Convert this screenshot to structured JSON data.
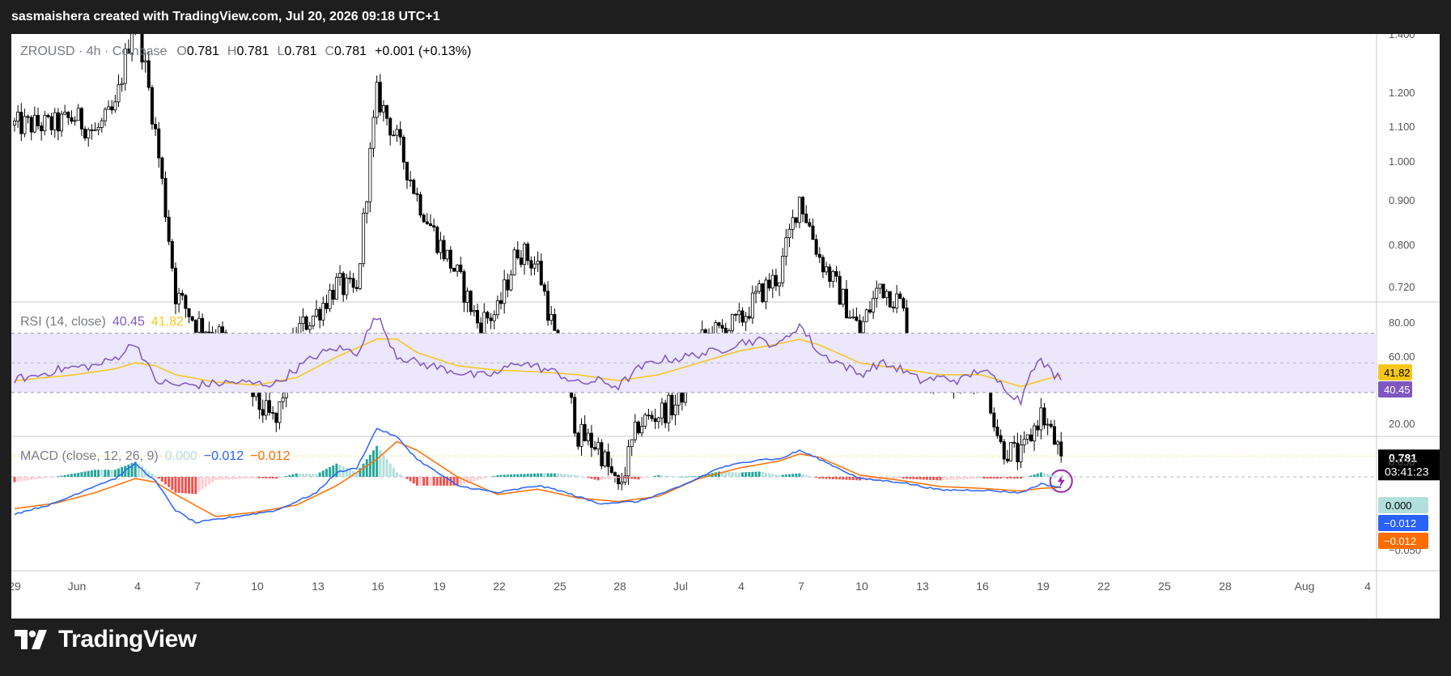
{
  "header": {
    "attribution": "sasmaishera created with TradingView.com, Jul 20, 2026 09:18 UTC+1"
  },
  "brand": {
    "name": "TradingView",
    "logo_icon": "tradingview-logo-icon"
  },
  "colors": {
    "background": "#1e1e1e",
    "pane": "#ffffff",
    "candle": "#000000",
    "rsi_line": "#7e57c2",
    "rsi_ma": "#f7c61b",
    "rsi_band": "#ece7fb",
    "macd_line": "#2962ff",
    "signal_line": "#ff6d00",
    "hist_pos_strong": "#26a69a",
    "hist_pos_weak": "#b2dfdb",
    "hist_neg_strong": "#ef5350",
    "hist_neg_weak": "#ffcdd2"
  },
  "price_pane": {
    "legend": {
      "symbol": "ZROUSD",
      "interval": "4h",
      "exchange": "Coinbase",
      "o_label": "O",
      "o": "0.781",
      "h_label": "H",
      "h": "0.781",
      "l_label": "L",
      "l": "0.781",
      "c_label": "C",
      "c": "0.781",
      "change": "+0.001 (+0.13%)"
    },
    "axis_ticks": [
      "1.400",
      "1.200",
      "1.100",
      "1.000",
      "0.900",
      "0.800",
      "0.720"
    ],
    "last_price": "0.781",
    "countdown": "03:41:23",
    "marker_icon": "lightning-icon"
  },
  "rsi_pane": {
    "legend": {
      "name": "RSI (14, close)",
      "rsi": "40.45",
      "ma": "41.82"
    },
    "axis_ticks": [
      "80.00",
      "60.00",
      "20.00"
    ],
    "badges": {
      "ma": "41.82",
      "rsi": "40.45"
    }
  },
  "macd_pane": {
    "legend": {
      "name": "MACD (close, 12, 26, 9)",
      "hist": "0.000",
      "macd": "−0.012",
      "signal": "−0.012"
    },
    "axis_ticks": [
      "0.050",
      "−0.050"
    ],
    "badges": {
      "hist": "0.000",
      "macd": "−0.012",
      "signal": "−0.012"
    }
  },
  "time_axis": {
    "labels": [
      "29",
      "Jun",
      "4",
      "7",
      "10",
      "13",
      "16",
      "19",
      "22",
      "25",
      "28",
      "Jul",
      "4",
      "7",
      "10",
      "13",
      "16",
      "19",
      "22",
      "25",
      "28",
      "Aug",
      "4"
    ]
  },
  "chart_data": [
    {
      "type": "candlestick",
      "title": "ZROUSD · 4h · Coinbase",
      "x_range": [
        "2026-05-29",
        "2026-08-04"
      ],
      "ylim": [
        0.7,
        1.4
      ],
      "y_scale": "log",
      "grid": false,
      "close_anchors": [
        [
          "2026-05-29",
          1.14
        ],
        [
          "2026-05-31",
          1.14
        ],
        [
          "2026-06-01",
          1.15
        ],
        [
          "2026-06-02",
          1.13
        ],
        [
          "2026-06-03",
          1.16
        ],
        [
          "2026-06-04",
          1.3
        ],
        [
          "2026-06-05",
          1.13
        ],
        [
          "2026-06-06",
          0.94
        ],
        [
          "2026-06-07",
          0.91
        ],
        [
          "2026-06-08",
          0.9
        ],
        [
          "2026-06-09",
          0.88
        ],
        [
          "2026-06-10",
          0.83
        ],
        [
          "2026-06-11",
          0.81
        ],
        [
          "2026-06-12",
          0.9
        ],
        [
          "2026-06-13",
          0.92
        ],
        [
          "2026-06-14",
          0.95
        ],
        [
          "2026-06-15",
          0.94
        ],
        [
          "2026-06-16",
          1.18
        ],
        [
          "2026-06-17",
          1.12
        ],
        [
          "2026-06-18",
          1.05
        ],
        [
          "2026-06-19",
          1.0
        ],
        [
          "2026-06-20",
          0.96
        ],
        [
          "2026-06-21",
          0.91
        ],
        [
          "2026-06-22",
          0.92
        ],
        [
          "2026-06-23",
          0.99
        ],
        [
          "2026-06-24",
          0.97
        ],
        [
          "2026-06-25",
          0.88
        ],
        [
          "2026-06-26",
          0.8
        ],
        [
          "2026-06-27",
          0.79
        ],
        [
          "2026-06-28",
          0.75
        ],
        [
          "2026-06-29",
          0.81
        ],
        [
          "2026-06-30",
          0.82
        ],
        [
          "2026-07-01",
          0.83
        ],
        [
          "2026-07-02",
          0.89
        ],
        [
          "2026-07-03",
          0.9
        ],
        [
          "2026-07-04",
          0.91
        ],
        [
          "2026-07-05",
          0.94
        ],
        [
          "2026-07-06",
          0.96
        ],
        [
          "2026-07-07",
          1.05
        ],
        [
          "2026-07-08",
          0.98
        ],
        [
          "2026-07-09",
          0.94
        ],
        [
          "2026-07-10",
          0.9
        ],
        [
          "2026-07-11",
          0.95
        ],
        [
          "2026-07-12",
          0.93
        ],
        [
          "2026-07-13",
          0.86
        ],
        [
          "2026-07-14",
          0.86
        ],
        [
          "2026-07-15",
          0.85
        ],
        [
          "2026-07-16",
          0.87
        ],
        [
          "2026-07-17",
          0.79
        ],
        [
          "2026-07-18",
          0.78
        ],
        [
          "2026-07-19",
          0.82
        ],
        [
          "2026-07-20",
          0.781
        ]
      ],
      "last": 0.781
    },
    {
      "type": "line",
      "title": "RSI (14, close)",
      "ylim": [
        20,
        85
      ],
      "bands": [
        30,
        50,
        70
      ],
      "series": [
        {
          "name": "RSI",
          "points": [
            [
              "2026-05-29",
              39
            ],
            [
              "2026-05-30",
              41
            ],
            [
              "2026-05-31",
              45
            ],
            [
              "2026-06-01",
              47
            ],
            [
              "2026-06-02",
              48
            ],
            [
              "2026-06-03",
              53
            ],
            [
              "2026-06-04",
              64
            ],
            [
              "2026-06-05",
              38
            ],
            [
              "2026-06-06",
              35
            ],
            [
              "2026-06-07",
              35
            ],
            [
              "2026-06-08",
              36
            ],
            [
              "2026-06-09",
              37
            ],
            [
              "2026-06-10",
              36
            ],
            [
              "2026-06-11",
              36
            ],
            [
              "2026-06-12",
              46
            ],
            [
              "2026-06-13",
              55
            ],
            [
              "2026-06-14",
              60
            ],
            [
              "2026-06-15",
              57
            ],
            [
              "2026-06-16",
              82
            ],
            [
              "2026-06-17",
              55
            ],
            [
              "2026-06-18",
              50
            ],
            [
              "2026-06-19",
              47
            ],
            [
              "2026-06-20",
              44
            ],
            [
              "2026-06-21",
              41
            ],
            [
              "2026-06-22",
              43
            ],
            [
              "2026-06-23",
              51
            ],
            [
              "2026-06-24",
              47
            ],
            [
              "2026-06-25",
              43
            ],
            [
              "2026-06-26",
              36
            ],
            [
              "2026-06-27",
              38
            ],
            [
              "2026-06-28",
              34
            ],
            [
              "2026-06-29",
              46
            ],
            [
              "2026-06-30",
              52
            ],
            [
              "2026-07-01",
              53
            ],
            [
              "2026-07-02",
              56
            ],
            [
              "2026-07-03",
              58
            ],
            [
              "2026-07-04",
              64
            ],
            [
              "2026-07-05",
              65
            ],
            [
              "2026-07-06",
              62
            ],
            [
              "2026-07-07",
              76
            ],
            [
              "2026-07-08",
              56
            ],
            [
              "2026-07-09",
              50
            ],
            [
              "2026-07-10",
              42
            ],
            [
              "2026-07-11",
              50
            ],
            [
              "2026-07-12",
              46
            ],
            [
              "2026-07-13",
              38
            ],
            [
              "2026-07-14",
              40
            ],
            [
              "2026-07-15",
              38
            ],
            [
              "2026-07-16",
              46
            ],
            [
              "2026-07-17",
              36
            ],
            [
              "2026-07-18",
              24
            ],
            [
              "2026-07-18T12:00",
              47
            ],
            [
              "2026-07-19",
              51
            ],
            [
              "2026-07-19T16:00",
              42
            ],
            [
              "2026-07-20",
              40.45
            ]
          ]
        },
        {
          "name": "MA",
          "points": [
            [
              "2026-05-29",
              38
            ],
            [
              "2026-06-01",
              42
            ],
            [
              "2026-06-03",
              46
            ],
            [
              "2026-06-04",
              50
            ],
            [
              "2026-06-05",
              48
            ],
            [
              "2026-06-06",
              42
            ],
            [
              "2026-06-08",
              37
            ],
            [
              "2026-06-10",
              35
            ],
            [
              "2026-06-12",
              40
            ],
            [
              "2026-06-14",
              54
            ],
            [
              "2026-06-16",
              66
            ],
            [
              "2026-06-17",
              66
            ],
            [
              "2026-06-18",
              57
            ],
            [
              "2026-06-20",
              48
            ],
            [
              "2026-06-22",
              45
            ],
            [
              "2026-06-24",
              44
            ],
            [
              "2026-06-26",
              42
            ],
            [
              "2026-06-28",
              38
            ],
            [
              "2026-06-30",
              42
            ],
            [
              "2026-07-02",
              50
            ],
            [
              "2026-07-04",
              58
            ],
            [
              "2026-07-06",
              63
            ],
            [
              "2026-07-07",
              66
            ],
            [
              "2026-07-08",
              62
            ],
            [
              "2026-07-10",
              50
            ],
            [
              "2026-07-12",
              46
            ],
            [
              "2026-07-14",
              42
            ],
            [
              "2026-07-16",
              42
            ],
            [
              "2026-07-17",
              38
            ],
            [
              "2026-07-18",
              34
            ],
            [
              "2026-07-19",
              38
            ],
            [
              "2026-07-20",
              41.82
            ]
          ]
        }
      ]
    },
    {
      "type": "line",
      "title": "MACD (close, 12, 26, 9)",
      "ylim": [
        -0.065,
        0.07
      ],
      "series": [
        {
          "name": "MACD",
          "points": [
            [
              "2026-05-29",
              -0.042
            ],
            [
              "2026-05-31",
              -0.03
            ],
            [
              "2026-06-02",
              -0.01
            ],
            [
              "2026-06-03",
              -0.002
            ],
            [
              "2026-06-04",
              0.015
            ],
            [
              "2026-06-05",
              -0.005
            ],
            [
              "2026-06-06",
              -0.038
            ],
            [
              "2026-06-07",
              -0.052
            ],
            [
              "2026-06-09",
              -0.045
            ],
            [
              "2026-06-11",
              -0.038
            ],
            [
              "2026-06-13",
              -0.018
            ],
            [
              "2026-06-14",
              0.005
            ],
            [
              "2026-06-15",
              0.01
            ],
            [
              "2026-06-16",
              0.055
            ],
            [
              "2026-06-17",
              0.045
            ],
            [
              "2026-06-18",
              0.02
            ],
            [
              "2026-06-20",
              -0.01
            ],
            [
              "2026-06-22",
              -0.018
            ],
            [
              "2026-06-24",
              -0.01
            ],
            [
              "2026-06-25",
              -0.015
            ],
            [
              "2026-06-27",
              -0.03
            ],
            [
              "2026-06-29",
              -0.028
            ],
            [
              "2026-07-01",
              -0.012
            ],
            [
              "2026-07-03",
              0.01
            ],
            [
              "2026-07-05",
              0.02
            ],
            [
              "2026-07-06",
              0.02
            ],
            [
              "2026-07-07",
              0.03
            ],
            [
              "2026-07-08",
              0.02
            ],
            [
              "2026-07-10",
              -0.002
            ],
            [
              "2026-07-12",
              -0.006
            ],
            [
              "2026-07-14",
              -0.015
            ],
            [
              "2026-07-16",
              -0.015
            ],
            [
              "2026-07-18",
              -0.018
            ],
            [
              "2026-07-19",
              -0.008
            ],
            [
              "2026-07-20",
              -0.012
            ]
          ]
        },
        {
          "name": "Signal",
          "points": [
            [
              "2026-05-29",
              -0.036
            ],
            [
              "2026-05-31",
              -0.03
            ],
            [
              "2026-06-02",
              -0.018
            ],
            [
              "2026-06-04",
              -0.002
            ],
            [
              "2026-06-05",
              -0.006
            ],
            [
              "2026-06-06",
              -0.02
            ],
            [
              "2026-06-08",
              -0.045
            ],
            [
              "2026-06-10",
              -0.04
            ],
            [
              "2026-06-12",
              -0.032
            ],
            [
              "2026-06-14",
              -0.01
            ],
            [
              "2026-06-16",
              0.02
            ],
            [
              "2026-06-17",
              0.04
            ],
            [
              "2026-06-18",
              0.03
            ],
            [
              "2026-06-20",
              0.0
            ],
            [
              "2026-06-22",
              -0.02
            ],
            [
              "2026-06-24",
              -0.014
            ],
            [
              "2026-06-26",
              -0.024
            ],
            [
              "2026-06-28",
              -0.028
            ],
            [
              "2026-06-30",
              -0.022
            ],
            [
              "2026-07-02",
              -0.002
            ],
            [
              "2026-07-04",
              0.01
            ],
            [
              "2026-07-06",
              0.018
            ],
            [
              "2026-07-07",
              0.026
            ],
            [
              "2026-07-08",
              0.022
            ],
            [
              "2026-07-10",
              0.002
            ],
            [
              "2026-07-12",
              -0.004
            ],
            [
              "2026-07-14",
              -0.011
            ],
            [
              "2026-07-16",
              -0.013
            ],
            [
              "2026-07-18",
              -0.016
            ],
            [
              "2026-07-19",
              -0.013
            ],
            [
              "2026-07-20",
              -0.012
            ]
          ]
        }
      ]
    }
  ]
}
